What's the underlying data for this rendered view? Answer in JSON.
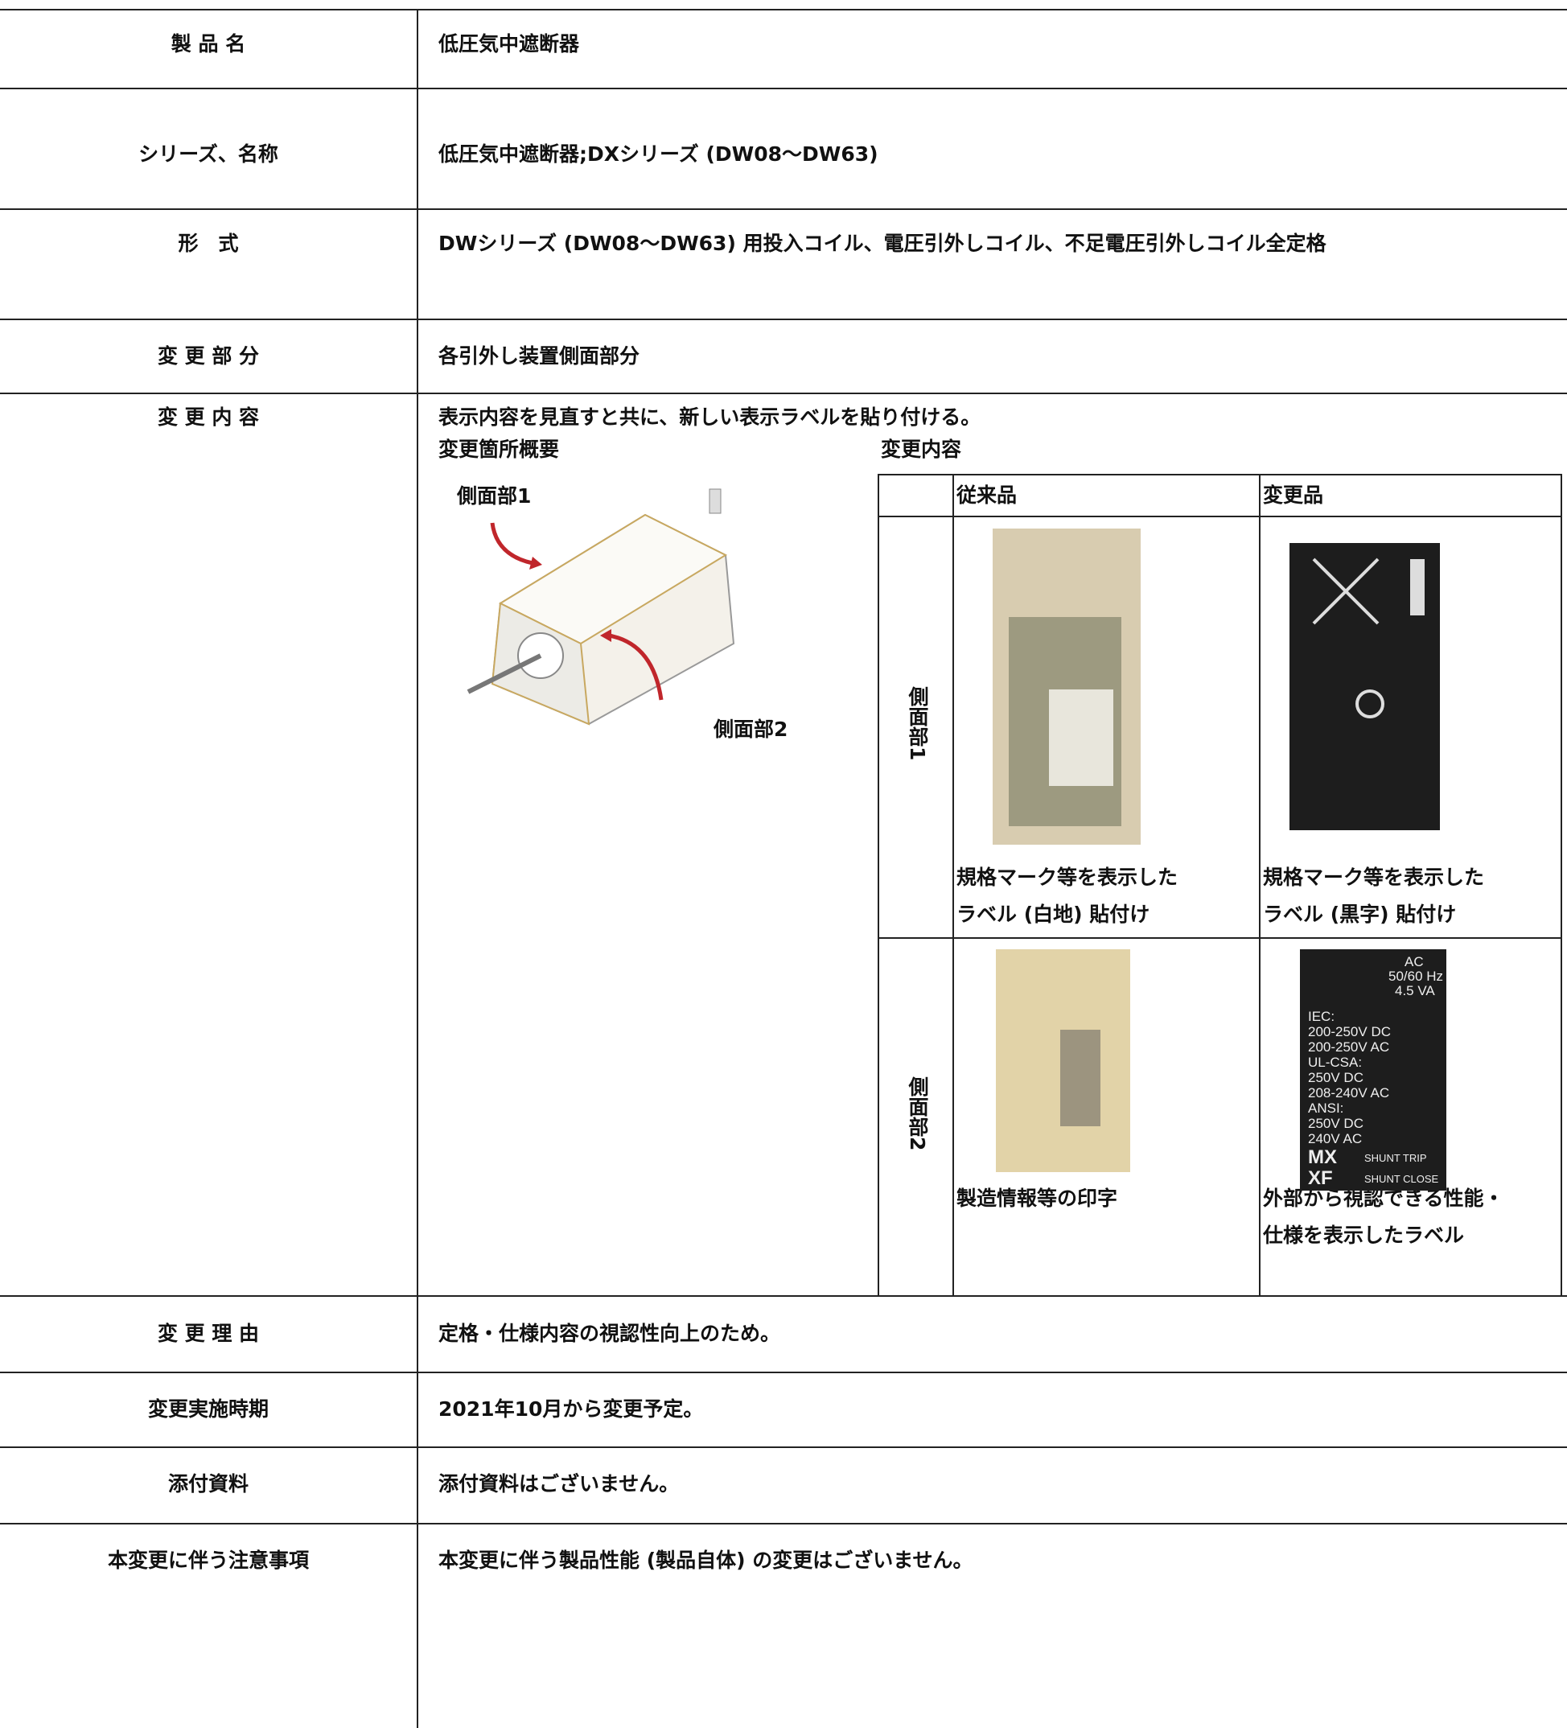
{
  "table": {
    "rows": [
      {
        "label": "製 品 名",
        "value": "低圧気中遮断器"
      },
      {
        "label": "シリーズ、名称",
        "value": "低圧気中遮断器;DXシリーズ (DW08～DW63)"
      },
      {
        "label": "形　式",
        "value": "DWシリーズ (DW08～DW63) 用投入コイル、電圧引外しコイル、不足電圧引外しコイル全定格"
      },
      {
        "label": "変 更 部 分",
        "value": "各引外し装置側面部分"
      },
      {
        "label": "変 更 内 容",
        "value": "表示内容を見直すと共に、新しい表示ラベルを貼り付ける。"
      },
      {
        "label": "変 更 理 由",
        "value": "定格・仕様内容の視認性向上のため。"
      },
      {
        "label": "変更実施時期",
        "value": "2021年10月から変更予定。"
      },
      {
        "label": "添付資料",
        "value": "添付資料はございません。"
      },
      {
        "label": "本変更に伴う注意事項",
        "value": "本変更に伴う製品性能 (製品自体) の変更はございません。"
      }
    ]
  },
  "detail": {
    "overview_title": "変更箇所概要",
    "callouts": [
      "側面部1",
      "側面部2"
    ],
    "content_title": "変更内容",
    "headers": [
      "従来品",
      "変更品"
    ],
    "rows": [
      {
        "side": "側面部1",
        "before": [
          "規格マーク等を表示した",
          "ラベル (白地) 貼付け"
        ],
        "after": [
          "規格マーク等を表示した",
          "ラベル (黒字) 貼付け"
        ]
      },
      {
        "side": "側面部2",
        "before": [
          "製造情報等の印字"
        ],
        "after": [
          "外部から視認できる性能・",
          "仕様を表示したラベル"
        ]
      }
    ],
    "label_text": [
      "AC",
      "50/60 Hz",
      "4.5 VA",
      "IEC:",
      "200-250V DC",
      "200-250V AC",
      "UL-CSA:",
      "250V DC",
      "208-240V AC",
      "ANSI:",
      "250V DC",
      "240V AC",
      "MX",
      "XF",
      "SHUNT TRIP",
      "SHUNT CLOSE"
    ]
  }
}
